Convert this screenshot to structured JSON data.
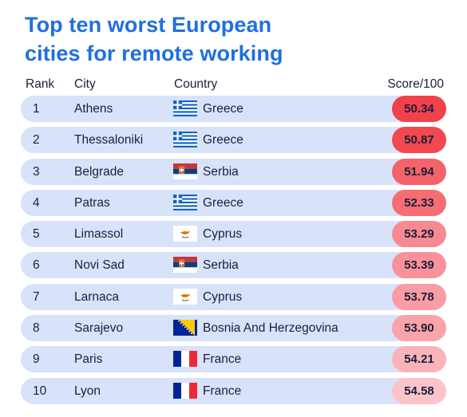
{
  "title_line1": "Top ten worst European",
  "title_line2": "cities for remote working",
  "headers": {
    "rank": "Rank",
    "city": "City",
    "country": "Country",
    "score": "Score/100"
  },
  "colors": {
    "title": "#1f6fe0",
    "row_bg": "#d8e3fa"
  },
  "rows": [
    {
      "rank": "1",
      "city": "Athens",
      "country": "Greece",
      "flag": "greece-flag-icon",
      "score": "50.34",
      "score_color": "#f2414a"
    },
    {
      "rank": "2",
      "city": "Thessaloniki",
      "country": "Greece",
      "flag": "greece-flag-icon",
      "score": "50.87",
      "score_color": "#f34850"
    },
    {
      "rank": "3",
      "city": "Belgrade",
      "country": "Serbia",
      "flag": "serbia-flag-icon",
      "score": "51.94",
      "score_color": "#f5636a"
    },
    {
      "rank": "4",
      "city": "Patras",
      "country": "Greece",
      "flag": "greece-flag-icon",
      "score": "52.33",
      "score_color": "#f66d74"
    },
    {
      "rank": "5",
      "city": "Limassol",
      "country": "Cyprus",
      "flag": "cyprus-flag-icon",
      "score": "53.29",
      "score_color": "#f78a90"
    },
    {
      "rank": "6",
      "city": "Novi Sad",
      "country": "Serbia",
      "flag": "serbia-flag-icon",
      "score": "53.39",
      "score_color": "#f8929a"
    },
    {
      "rank": "7",
      "city": "Larnaca",
      "country": "Cyprus",
      "flag": "cyprus-flag-icon",
      "score": "53.78",
      "score_color": "#f99ca3"
    },
    {
      "rank": "8",
      "city": "Sarajevo",
      "country": "Bosnia And Herzegovina",
      "flag": "bosnia-flag-icon",
      "score": "53.90",
      "score_color": "#f9a3aa"
    },
    {
      "rank": "9",
      "city": "Paris",
      "country": "France",
      "flag": "france-flag-icon",
      "score": "54.21",
      "score_color": "#fab4b9"
    },
    {
      "rank": "10",
      "city": "Lyon",
      "country": "France",
      "flag": "france-flag-icon",
      "score": "54.58",
      "score_color": "#fbc4c8"
    }
  ]
}
